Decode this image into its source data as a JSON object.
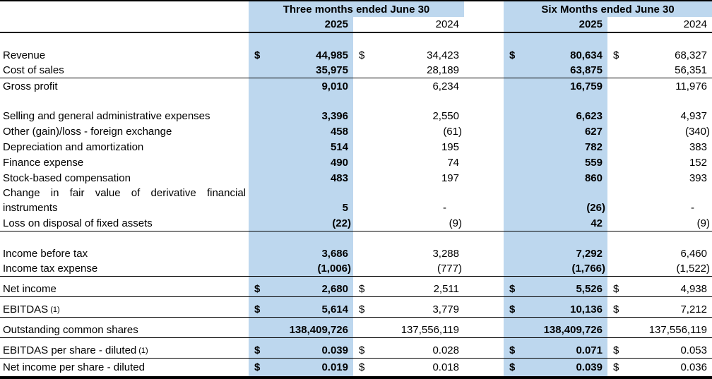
{
  "colors": {
    "highlight": "#BDD7EE"
  },
  "table": {
    "currency": "$",
    "header": {
      "group1": "Three months ended June 30",
      "group2": "Six Months ended June 30",
      "col1": "2025",
      "col2": "2024",
      "col3": "2025",
      "col4": "2024"
    },
    "rows": [
      {
        "type": "blank"
      },
      {
        "label": "Revenue",
        "dollar": true,
        "values": [
          "44,985",
          "34,423",
          "80,634",
          "68,327"
        ]
      },
      {
        "label": "Cost of sales",
        "values": [
          "35,975",
          "28,189",
          "63,875",
          "56,351"
        ],
        "line": true
      },
      {
        "label": "Gross profit",
        "values": [
          "9,010",
          "6,234",
          "16,759",
          "11,976"
        ]
      },
      {
        "type": "blank"
      },
      {
        "label": "Selling and general administrative expenses",
        "values": [
          "3,396",
          "2,550",
          "6,623",
          "4,937"
        ]
      },
      {
        "label": "Other (gain)/loss - foreign exchange",
        "values": [
          "458",
          "(61)",
          "627",
          "(340)"
        ]
      },
      {
        "label": "Depreciation and amortization",
        "values": [
          "514",
          "195",
          "782",
          "383"
        ]
      },
      {
        "label": "Finance expense",
        "values": [
          "490",
          "74",
          "559",
          "152"
        ]
      },
      {
        "label": "Stock-based compensation",
        "values": [
          "483",
          "197",
          "860",
          "393"
        ]
      },
      {
        "label": "Change in fair value of derivative financial instruments",
        "justify": true,
        "tall": true,
        "values": [
          "5",
          "-",
          "(26)",
          "-"
        ]
      },
      {
        "label": "Loss on disposal of fixed assets",
        "values": [
          "(22)",
          "(9)",
          "42",
          "(9)"
        ],
        "line": true
      },
      {
        "type": "blank"
      },
      {
        "label": "Income before tax",
        "values": [
          "3,686",
          "3,288",
          "7,292",
          "6,460"
        ]
      },
      {
        "label": "Income tax expense",
        "values": [
          "(1,006)",
          "(777)",
          "(1,766)",
          "(1,522)"
        ],
        "line": true
      },
      {
        "type": "blank",
        "small": true
      },
      {
        "label": "Net income",
        "dollar": true,
        "values": [
          "2,680",
          "2,511",
          "5,526",
          "4,938"
        ],
        "line": true
      },
      {
        "type": "blank",
        "small": true
      },
      {
        "label": "EBITDAS",
        "note": "(1)",
        "dollar": true,
        "values": [
          "5,614",
          "3,779",
          "10,136",
          "7,212"
        ],
        "line": true
      },
      {
        "type": "blank",
        "small": true
      },
      {
        "label": "Outstanding common shares",
        "values": [
          "138,409,726",
          "137,556,119",
          "138,409,726",
          "137,556,119"
        ],
        "line": true
      },
      {
        "type": "blank",
        "small": true
      },
      {
        "label": "EBITDAS per share - diluted",
        "note": "(1)",
        "dollar": true,
        "values": [
          "0.039",
          "0.028",
          "0.071",
          "0.053"
        ],
        "line": true
      },
      {
        "label": "Net income per share - diluted",
        "dollar": true,
        "values": [
          "0.019",
          "0.018",
          "0.039",
          "0.036"
        ]
      }
    ]
  }
}
